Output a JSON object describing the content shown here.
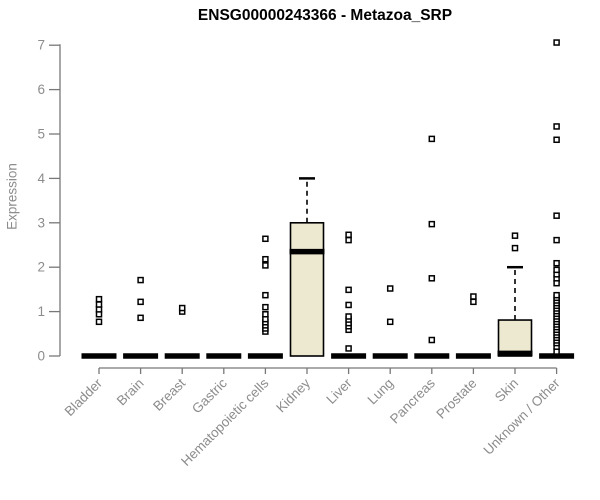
{
  "chart_data": {
    "type": "boxplot",
    "title": "ENSG00000243366 - Metazoa_SRP",
    "ylabel": "Expression",
    "xlabel": "",
    "ylim": [
      0,
      7
    ],
    "yticks": [
      0,
      1,
      2,
      3,
      4,
      5,
      6,
      7
    ],
    "grid": false,
    "legend": "none",
    "categories": [
      "Bladder",
      "Brain",
      "Breast",
      "Gastric",
      "Hematopoietic cells",
      "Kidney",
      "Liver",
      "Lung",
      "Pancreas",
      "Prostate",
      "Skin",
      "Unknown / Other"
    ],
    "series": [
      {
        "name": "Bladder",
        "q1": 0,
        "median": 0,
        "q3": 0,
        "whisker_low": 0,
        "whisker_high": 0,
        "outliers": [
          0.77,
          0.94,
          1.05,
          1.16,
          1.28
        ]
      },
      {
        "name": "Brain",
        "q1": 0,
        "median": 0,
        "q3": 0,
        "whisker_low": 0,
        "whisker_high": 0,
        "outliers": [
          0.86,
          1.22,
          1.71
        ]
      },
      {
        "name": "Breast",
        "q1": 0,
        "median": 0,
        "q3": 0,
        "whisker_low": 0,
        "whisker_high": 0,
        "outliers": [
          1.0,
          1.08
        ]
      },
      {
        "name": "Gastric",
        "q1": 0,
        "median": 0,
        "q3": 0,
        "whisker_low": 0,
        "whisker_high": 0,
        "outliers": []
      },
      {
        "name": "Hematopoietic cells",
        "q1": 0,
        "median": 0,
        "q3": 0,
        "whisker_low": 0,
        "whisker_high": 0,
        "outliers": [
          0.55,
          0.62,
          0.69,
          0.76,
          0.83,
          0.94,
          1.1,
          1.37,
          2.04,
          2.18,
          2.64
        ]
      },
      {
        "name": "Kidney",
        "q1": 0,
        "median": 2.35,
        "q3": 3.0,
        "whisker_low": 0,
        "whisker_high": 4.0,
        "outliers": []
      },
      {
        "name": "Liver",
        "q1": 0,
        "median": 0,
        "q3": 0,
        "whisker_low": 0,
        "whisker_high": 0,
        "outliers": [
          0.17,
          0.59,
          0.67,
          0.74,
          0.82,
          0.89,
          1.15,
          1.49,
          2.61,
          2.73
        ]
      },
      {
        "name": "Lung",
        "q1": 0,
        "median": 0,
        "q3": 0,
        "whisker_low": 0,
        "whisker_high": 0,
        "outliers": [
          0.77,
          1.52
        ]
      },
      {
        "name": "Pancreas",
        "q1": 0,
        "median": 0,
        "q3": 0,
        "whisker_low": 0,
        "whisker_high": 0,
        "outliers": [
          0.36,
          1.75,
          2.97,
          4.89
        ]
      },
      {
        "name": "Prostate",
        "q1": 0,
        "median": 0,
        "q3": 0,
        "whisker_low": 0,
        "whisker_high": 0,
        "outliers": [
          1.22,
          1.34
        ]
      },
      {
        "name": "Skin",
        "q1": 0,
        "median": 0.06,
        "q3": 0.81,
        "whisker_low": 0,
        "whisker_high": 2.0,
        "outliers": [
          2.43,
          2.71
        ]
      },
      {
        "name": "Unknown / Other",
        "q1": 0,
        "median": 0,
        "q3": 0,
        "whisker_low": 0,
        "whisker_high": 0,
        "outliers": [
          0.1,
          0.21,
          0.29,
          0.35,
          0.41,
          0.47,
          0.53,
          0.59,
          0.65,
          0.71,
          0.77,
          0.83,
          0.89,
          0.95,
          1.01,
          1.07,
          1.13,
          1.19,
          1.25,
          1.31,
          1.37,
          1.64,
          1.75,
          1.84,
          1.94,
          2.09,
          2.61,
          3.16,
          4.87,
          5.17,
          7.06
        ]
      }
    ],
    "colors": {
      "box_fill": "#ede8d0",
      "box_border": "#000000",
      "median": "#000000",
      "outlier": "#000000",
      "axis_line": "#787878",
      "tick_text": "#8c8c8c",
      "title_text": "#000000"
    }
  }
}
